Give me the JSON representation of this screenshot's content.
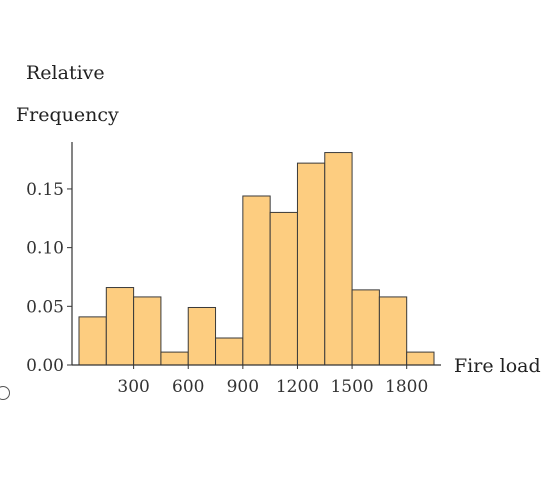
{
  "chart_data": {
    "type": "bar",
    "title": "",
    "ylabel_lines": [
      "Relative",
      "Frequency"
    ],
    "xlabel": "Fire load",
    "bin_width": 100,
    "x_start": 0,
    "bins": [
      {
        "x0": 0,
        "x1": 100,
        "value": 0.041
      },
      {
        "x0": 100,
        "x1": 200,
        "value": 0.066
      },
      {
        "x0": 200,
        "x1": 300,
        "value": 0.058
      },
      {
        "x0": 300,
        "x1": 400,
        "value": 0.011
      },
      {
        "x0": 400,
        "x1": 500,
        "value": 0.049
      },
      {
        "x0": 500,
        "x1": 600,
        "value": 0.023
      },
      {
        "x0": 600,
        "x1": 700,
        "value": 0.144
      },
      {
        "x0": 700,
        "x1": 800,
        "value": 0.13
      },
      {
        "x0": 800,
        "x1": 900,
        "value": 0.172
      },
      {
        "x0": 900,
        "x1": 1000,
        "value": 0.181
      },
      {
        "x0": 1000,
        "x1": 1100,
        "value": 0.064
      },
      {
        "x0": 1100,
        "x1": 1200,
        "value": 0.058
      },
      {
        "x0": 1200,
        "x1": 1300,
        "value": 0.011
      }
    ],
    "xticks": [
      {
        "label": "300",
        "pos": 200
      },
      {
        "label": "600",
        "pos": 400
      },
      {
        "label": "900",
        "pos": 600
      },
      {
        "label": "1200",
        "pos": 800
      },
      {
        "label": "1500",
        "pos": 1000
      },
      {
        "label": "1800",
        "pos": 1200
      }
    ],
    "yticks": [
      "0.00",
      "0.05",
      "0.10",
      "0.15"
    ],
    "ytick_values": [
      0,
      0.05,
      0.1,
      0.15
    ],
    "ylim": [
      0,
      0.19
    ],
    "xlim": [
      0,
      1300
    ],
    "bar_fill": "#fdcd80",
    "bar_stroke": "#3a3a3a",
    "axis_color": "#333333",
    "grid": false
  }
}
